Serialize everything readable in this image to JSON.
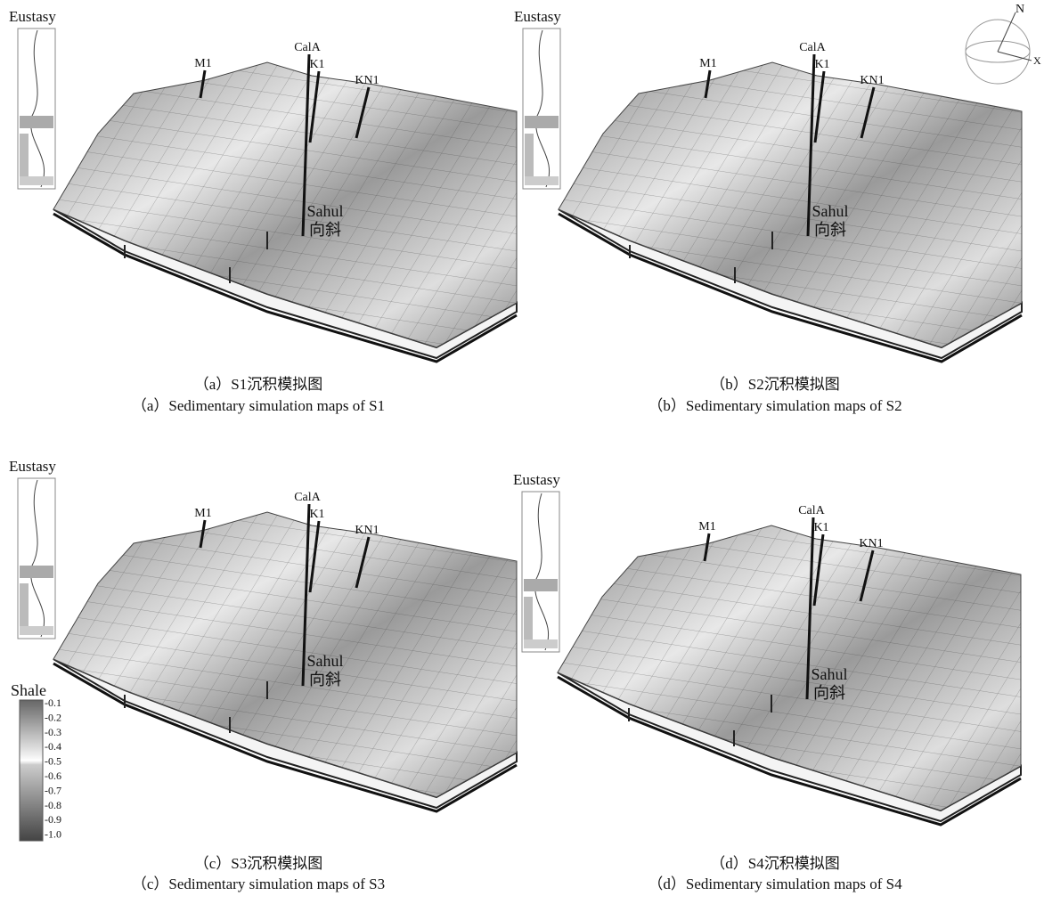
{
  "panels": [
    {
      "eustasy": "Eustasy",
      "wells": [
        "M1",
        "CalA",
        "K1",
        "KN1"
      ],
      "syncline": [
        "Sahul",
        "向斜"
      ],
      "caption_cn": "（a）S1沉积模拟图",
      "caption_en": "（a）Sedimentary simulation maps of S1"
    },
    {
      "eustasy": "Eustasy",
      "wells": [
        "M1",
        "CalA",
        "K1",
        "KN1"
      ],
      "syncline": [
        "Sahul",
        "向斜"
      ],
      "caption_cn": "（b）S2沉积模拟图",
      "caption_en": "（b）Sedimentary simulation maps of S2"
    },
    {
      "eustasy": "Eustasy",
      "wells": [
        "M1",
        "CalA",
        "K1",
        "KN1"
      ],
      "syncline": [
        "Sahul",
        "向斜"
      ],
      "caption_cn": "（c）S3沉积模拟图",
      "caption_en": "（c）Sedimentary simulation maps of S3"
    },
    {
      "eustasy": "Eustasy",
      "wells": [
        "M1",
        "CalA",
        "K1",
        "KN1"
      ],
      "syncline": [
        "Sahul",
        "向斜"
      ],
      "caption_cn": "（d）S4沉积模拟图",
      "caption_en": "（d）Sedimentary simulation maps of S4"
    }
  ],
  "compass": {
    "north": "N",
    "x": "X"
  },
  "legend": {
    "title": "Shale",
    "labels": [
      "-0.1",
      "-0.2",
      "-0.3",
      "-0.4",
      "-0.5",
      "-0.6",
      "-0.7",
      "-0.8",
      "-0.9",
      "-1.0"
    ]
  }
}
